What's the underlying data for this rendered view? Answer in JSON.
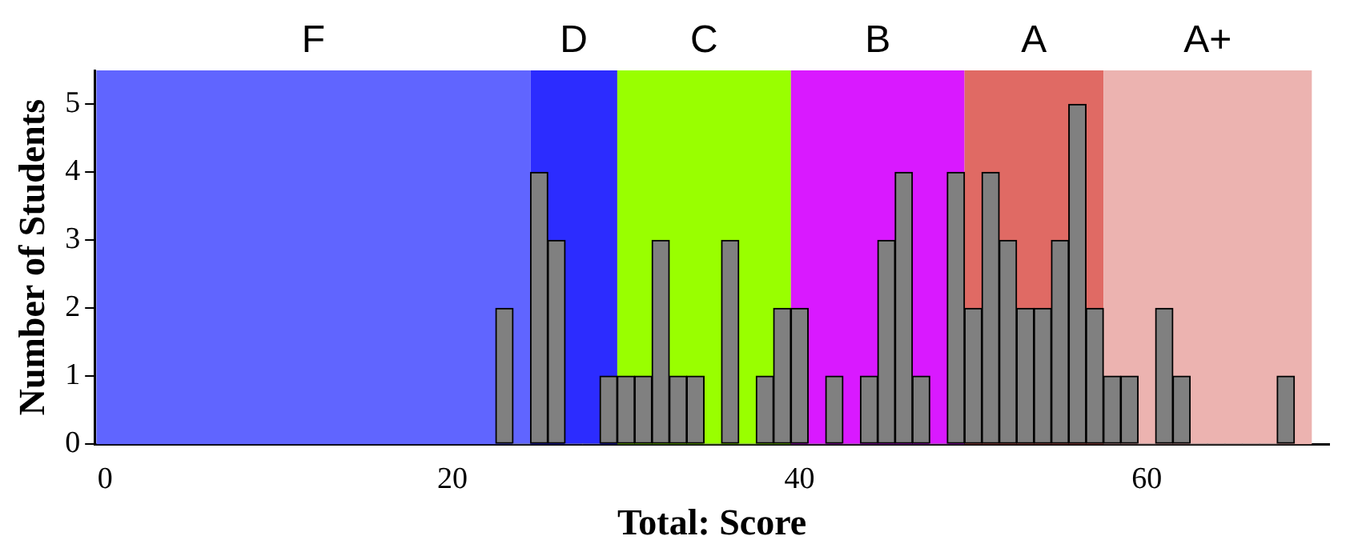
{
  "chart_data": {
    "type": "histogram",
    "xlabel": "Total: Score",
    "ylabel": "Number of Students",
    "bins": [
      22.5,
      23.5,
      24.5,
      25.5,
      26.5,
      27.5,
      28.5,
      29.5,
      30.5,
      31.5,
      32.5,
      33.5,
      34.5,
      35.5,
      36.5,
      37.5,
      38.5,
      39.5,
      40.5,
      41.5,
      42.5,
      43.5,
      44.5,
      45.5,
      46.5,
      47.5,
      48.5,
      49.5,
      50.5,
      51.5,
      52.5,
      53.5,
      54.5,
      55.5,
      56.5,
      57.5,
      58.5,
      59.5,
      60.5,
      61.5,
      62.5,
      63.5,
      64.5,
      65.5,
      66.5,
      67.5,
      68.5
    ],
    "values": [
      2,
      0,
      4,
      3,
      0,
      0,
      1,
      1,
      1,
      3,
      1,
      1,
      0,
      3,
      0,
      1,
      2,
      2,
      0,
      1,
      0,
      1,
      3,
      4,
      1,
      0,
      4,
      2,
      4,
      3,
      2,
      2,
      3,
      5,
      2,
      1,
      1,
      0,
      2,
      1,
      0,
      0,
      0,
      0,
      0,
      1
    ],
    "color": "#808080",
    "xlim": [
      -0.6,
      70.5
    ],
    "xticks": [
      0,
      20,
      40,
      60
    ],
    "ylim": [
      0,
      5.5
    ],
    "yticks": [
      0,
      1,
      2,
      3,
      4,
      5
    ],
    "grid": false,
    "legend": false,
    "bands": [
      {
        "axis": "x",
        "from": -0.5,
        "to": 24.5,
        "label": "F",
        "color": "#6065ff"
      },
      {
        "axis": "x",
        "from": 24.5,
        "to": 29.5,
        "label": "D",
        "color": "#2c2cff"
      },
      {
        "axis": "x",
        "from": 29.5,
        "to": 39.5,
        "label": "C",
        "color": "#99ff00"
      },
      {
        "axis": "x",
        "from": 39.5,
        "to": 49.5,
        "label": "B",
        "color": "#d919ff"
      },
      {
        "axis": "x",
        "from": 49.5,
        "to": 57.5,
        "label": "A",
        "color": "#e06a64"
      },
      {
        "axis": "x",
        "from": 57.5,
        "to": 69.5,
        "label": "A+",
        "color": "#ecb3b0"
      }
    ]
  }
}
